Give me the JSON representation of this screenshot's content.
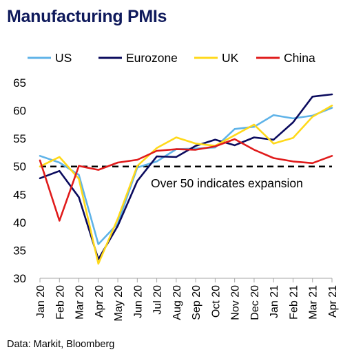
{
  "chart_data": {
    "type": "line",
    "title": "Manufacturing PMIs",
    "source": "Data: Markit, Bloomberg",
    "annotation": "Over 50 indicates expansion",
    "reference_line": {
      "y": 50,
      "style": "dashed",
      "color": "#000000"
    },
    "categories": [
      "Jan 20",
      "Feb 20",
      "Mar 20",
      "Apr 20",
      "May 20",
      "Jun 20",
      "Jul 20",
      "Aug 20",
      "Sep 20",
      "Oct 20",
      "Nov 20",
      "Dec 20",
      "Jan 21",
      "Feb 21",
      "Mar 21",
      "Apr 21"
    ],
    "ylim": [
      30,
      65
    ],
    "yticks": [
      30,
      35,
      40,
      45,
      50,
      55,
      60,
      65
    ],
    "grid": false,
    "legend": "top",
    "series": [
      {
        "name": "US",
        "color": "#5fb3e8",
        "values": [
          51.9,
          50.7,
          48.5,
          36.1,
          39.8,
          49.8,
          50.9,
          53.1,
          53.2,
          53.4,
          56.7,
          57.1,
          59.2,
          58.6,
          59.1,
          60.5
        ]
      },
      {
        "name": "Eurozone",
        "color": "#0b0b5e",
        "values": [
          47.9,
          49.2,
          44.5,
          33.4,
          39.4,
          47.4,
          51.8,
          51.7,
          53.7,
          54.8,
          53.8,
          55.2,
          54.8,
          57.9,
          62.5,
          62.9
        ]
      },
      {
        "name": "UK",
        "color": "#ffd91a",
        "values": [
          50.0,
          51.7,
          47.8,
          32.6,
          40.7,
          50.1,
          53.3,
          55.2,
          54.1,
          53.7,
          55.6,
          57.5,
          54.1,
          55.1,
          58.9,
          60.9
        ]
      },
      {
        "name": "China",
        "color": "#e01b1b",
        "values": [
          51.1,
          40.3,
          50.1,
          49.4,
          50.7,
          51.2,
          52.8,
          53.1,
          53.0,
          53.6,
          54.9,
          53.0,
          51.5,
          50.9,
          50.6,
          51.9
        ]
      }
    ]
  }
}
